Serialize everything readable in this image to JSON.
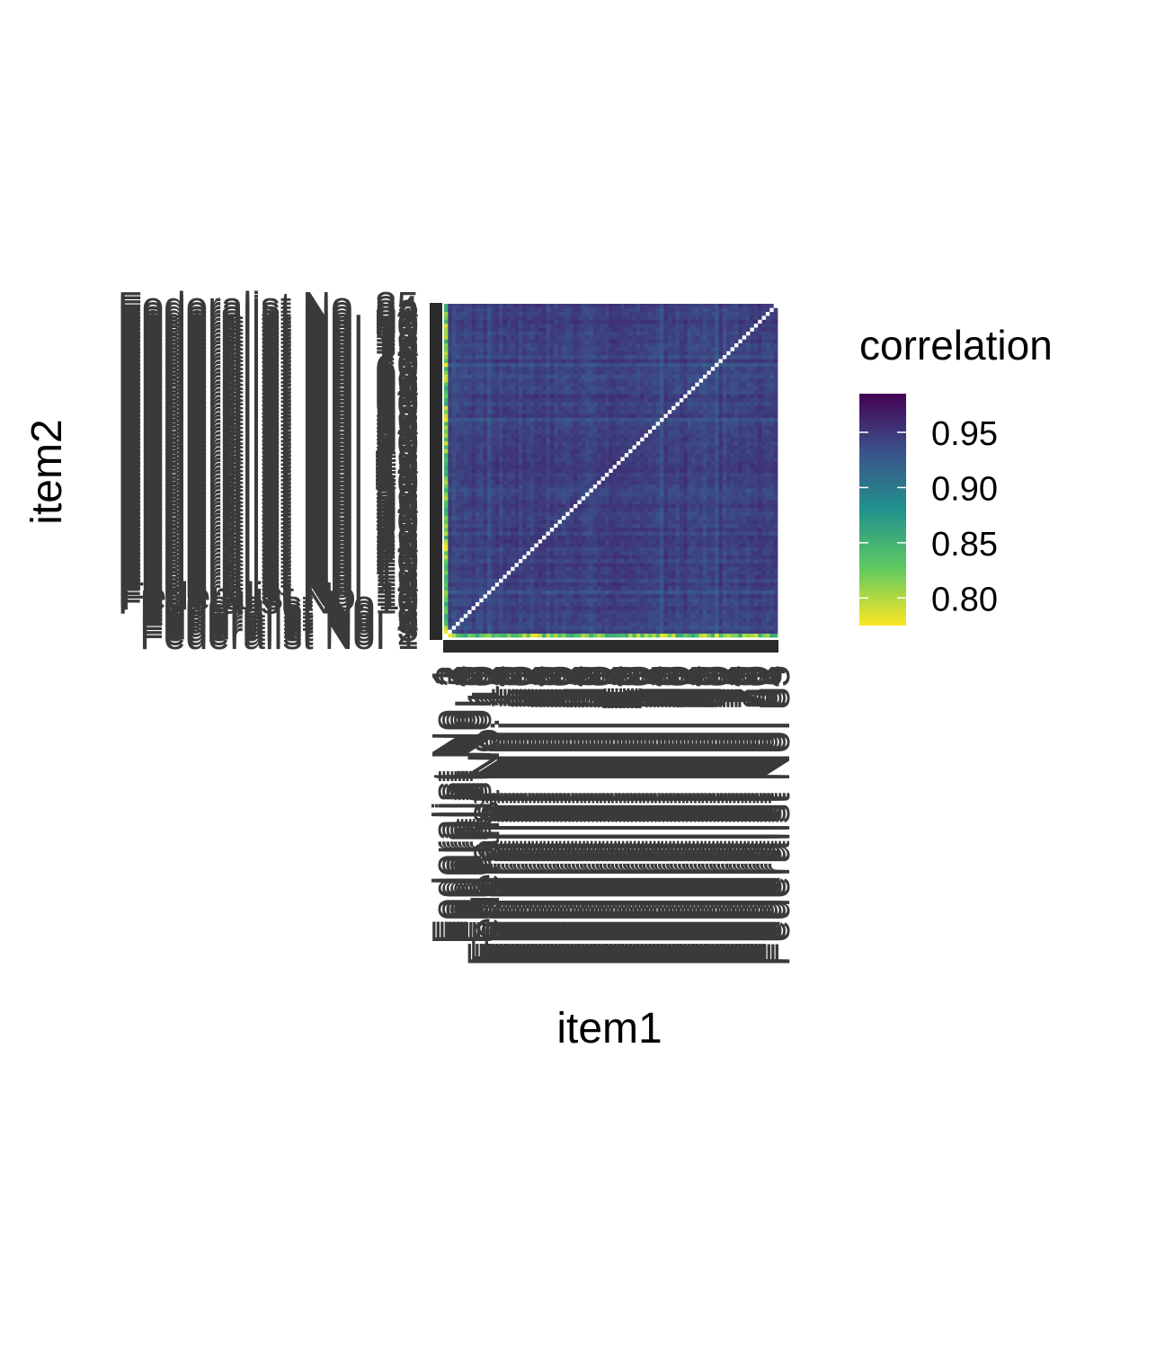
{
  "chart_data": {
    "type": "heatmap",
    "n_items": 85,
    "item_label_prefix": "Federalist No. ",
    "visible_y_labels": [
      "Federalist No. 85",
      "Federalist No. 1",
      "Federalist No. 4"
    ],
    "xlabel": "item1",
    "ylabel": "item2",
    "legend": {
      "title": "correlation",
      "ticks": [
        0.95,
        0.9,
        0.85,
        0.8
      ],
      "tick_labels": [
        "0.95",
        "0.90",
        "0.85",
        "0.80"
      ],
      "range": [
        0.775,
        0.985
      ],
      "colormap": "viridis (reversed: low = yellow, high = dark purple)",
      "placement": "right"
    },
    "value_range": [
      0.77,
      1.0
    ],
    "typical_offdiagonal": 0.95,
    "low_correlation_item_index": 0,
    "low_correlation_range": [
      0.78,
      0.86
    ],
    "diagonal": "1 (drawn white)"
  },
  "colors": {
    "viridis_stops": [
      "#440154",
      "#3b528b",
      "#21918c",
      "#5ec962",
      "#fde725"
    ],
    "tick_label": "#3a3a3a",
    "panel_strip": "#2a2a2a"
  }
}
